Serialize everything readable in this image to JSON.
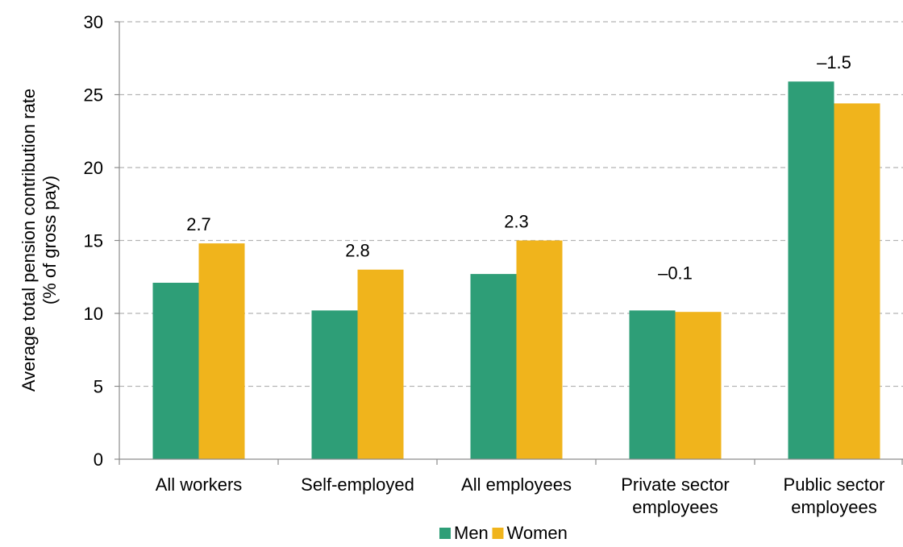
{
  "chart_data": {
    "type": "bar",
    "ylabel_line1": "Average total pension contribution rate",
    "ylabel_line2": "(% of gross pay)",
    "categories": [
      [
        "All workers"
      ],
      [
        "Self-employed"
      ],
      [
        "All employees"
      ],
      [
        "Private sector",
        "employees"
      ],
      [
        "Public sector",
        "employees"
      ]
    ],
    "series": [
      {
        "name": "Men",
        "color": "#2e9e77",
        "values": [
          12.1,
          10.2,
          12.7,
          10.2,
          25.9
        ]
      },
      {
        "name": "Women",
        "color": "#f0b41c",
        "values": [
          14.8,
          13.0,
          15.0,
          10.1,
          24.4
        ]
      }
    ],
    "gap_labels": [
      "2.7",
      "2.8",
      "2.3",
      "–0.1",
      "–1.5"
    ],
    "ylim": [
      0,
      30
    ],
    "yticks": [
      0,
      5,
      10,
      15,
      20,
      25,
      30
    ],
    "grid": true,
    "legend_position": "bottom-center"
  }
}
